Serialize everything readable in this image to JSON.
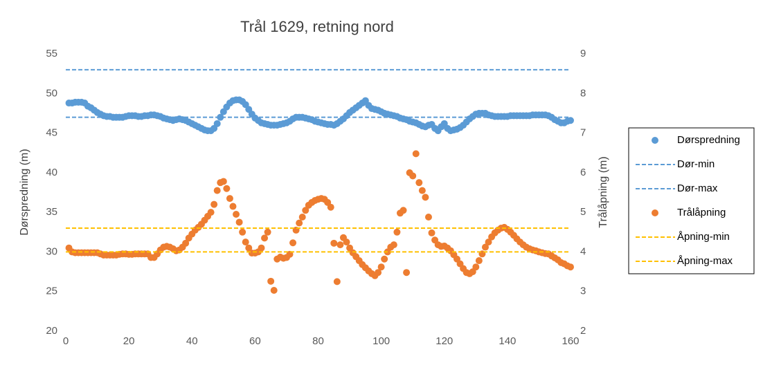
{
  "chart_data": {
    "type": "scatter",
    "title": "Trål 1629, retning nord",
    "y_label": "Dørspredning (m)",
    "y2_label": "Trålåpning (m)",
    "xlim": [
      0,
      160
    ],
    "xticks": [
      0,
      20,
      40,
      60,
      80,
      100,
      120,
      140,
      160
    ],
    "ylim": [
      20,
      55
    ],
    "yticks": [
      20,
      25,
      30,
      35,
      40,
      45,
      50,
      55
    ],
    "y2lim": [
      2,
      9
    ],
    "y2ticks": [
      2,
      3,
      4,
      5,
      6,
      7,
      8,
      9
    ],
    "legend": "right",
    "x": [
      1,
      2,
      3,
      4,
      5,
      6,
      7,
      8,
      9,
      10,
      11,
      12,
      13,
      14,
      15,
      16,
      17,
      18,
      19,
      20,
      21,
      22,
      23,
      24,
      25,
      26,
      27,
      28,
      29,
      30,
      31,
      32,
      33,
      34,
      35,
      36,
      37,
      38,
      39,
      40,
      41,
      42,
      43,
      44,
      45,
      46,
      47,
      48,
      49,
      50,
      51,
      52,
      53,
      54,
      55,
      56,
      57,
      58,
      59,
      60,
      61,
      62,
      63,
      64,
      65,
      66,
      67,
      68,
      69,
      70,
      71,
      72,
      73,
      74,
      75,
      76,
      77,
      78,
      79,
      80,
      81,
      82,
      83,
      84,
      85,
      86,
      87,
      88,
      89,
      90,
      91,
      92,
      93,
      94,
      95,
      96,
      97,
      98,
      99,
      100,
      101,
      102,
      103,
      104,
      105,
      106,
      107,
      108,
      109,
      110,
      111,
      112,
      113,
      114,
      115,
      116,
      117,
      118,
      119,
      120,
      121,
      122,
      123,
      124,
      125,
      126,
      127,
      128,
      129,
      130,
      131,
      132,
      133,
      134,
      135,
      136,
      137,
      138,
      139,
      140,
      141,
      142,
      143,
      144,
      145,
      146,
      147,
      148,
      149,
      150,
      151,
      152,
      153,
      154,
      155,
      156,
      157,
      158,
      159,
      160
    ],
    "series": [
      {
        "name": "Dørspredning",
        "color": "#5b9bd5",
        "style": "dots",
        "values": [
          48.8,
          48.8,
          48.9,
          48.9,
          48.9,
          48.8,
          48.4,
          48.2,
          47.9,
          47.6,
          47.4,
          47.2,
          47.1,
          47.1,
          47.0,
          47.0,
          47.0,
          47.0,
          47.1,
          47.2,
          47.2,
          47.2,
          47.1,
          47.1,
          47.2,
          47.2,
          47.3,
          47.3,
          47.2,
          47.1,
          46.9,
          46.8,
          46.7,
          46.6,
          46.7,
          46.8,
          46.7,
          46.6,
          46.4,
          46.2,
          46.0,
          45.8,
          45.6,
          45.4,
          45.3,
          45.3,
          45.6,
          46.2,
          47.0,
          47.7,
          48.3,
          48.8,
          49.1,
          49.2,
          49.2,
          49.0,
          48.6,
          48.0,
          47.4,
          46.9,
          46.6,
          46.3,
          46.2,
          46.1,
          46.0,
          46.0,
          46.0,
          46.1,
          46.2,
          46.3,
          46.5,
          46.8,
          47.0,
          47.0,
          47.0,
          46.9,
          46.8,
          46.7,
          46.5,
          46.4,
          46.3,
          46.2,
          46.1,
          46.1,
          46.0,
          46.2,
          46.5,
          46.8,
          47.2,
          47.6,
          47.9,
          48.2,
          48.5,
          48.8,
          49.1,
          48.5,
          48.1,
          48.0,
          47.9,
          47.7,
          47.5,
          47.4,
          47.3,
          47.2,
          47.1,
          46.9,
          46.8,
          46.7,
          46.5,
          46.4,
          46.3,
          46.1,
          45.9,
          45.8,
          46.0,
          46.1,
          45.6,
          45.3,
          45.8,
          46.2,
          45.6,
          45.3,
          45.4,
          45.5,
          45.7,
          46.0,
          46.4,
          46.8,
          47.1,
          47.4,
          47.5,
          47.5,
          47.5,
          47.3,
          47.2,
          47.1,
          47.1,
          47.1,
          47.1,
          47.1,
          47.2,
          47.2,
          47.2,
          47.2,
          47.2,
          47.2,
          47.2,
          47.3,
          47.3,
          47.3,
          47.3,
          47.3,
          47.2,
          47.0,
          46.7,
          46.5,
          46.3,
          46.3,
          46.5,
          46.6
        ]
      },
      {
        "name": "Dør-min",
        "color": "#5b9bd5",
        "style": "dashed",
        "value": 47
      },
      {
        "name": "Dør-max",
        "color": "#5b9bd5",
        "style": "dashed",
        "value": 53
      },
      {
        "name": "Trålåpning",
        "color": "#ed7d31",
        "style": "dots",
        "axis": "y2",
        "values": [
          4.1,
          4.0,
          3.98,
          3.98,
          3.98,
          3.98,
          3.98,
          3.98,
          3.98,
          3.98,
          3.95,
          3.92,
          3.92,
          3.92,
          3.92,
          3.92,
          3.94,
          3.95,
          3.95,
          3.94,
          3.94,
          3.95,
          3.95,
          3.95,
          3.95,
          3.95,
          3.86,
          3.86,
          3.95,
          4.05,
          4.12,
          4.14,
          4.12,
          4.08,
          4.03,
          4.05,
          4.12,
          4.22,
          4.35,
          4.45,
          4.55,
          4.62,
          4.7,
          4.8,
          4.9,
          5.0,
          5.2,
          5.55,
          5.75,
          5.78,
          5.6,
          5.35,
          5.15,
          4.95,
          4.75,
          4.5,
          4.25,
          4.1,
          3.97,
          3.97,
          4.0,
          4.1,
          4.35,
          4.5,
          3.26,
          3.03,
          3.82,
          3.87,
          3.84,
          3.86,
          3.94,
          4.23,
          4.55,
          4.73,
          4.88,
          5.05,
          5.18,
          5.25,
          5.3,
          5.33,
          5.35,
          5.33,
          5.25,
          5.13,
          4.22,
          3.25,
          4.18,
          4.36,
          4.25,
          4.1,
          3.98,
          3.88,
          3.78,
          3.68,
          3.6,
          3.52,
          3.45,
          3.4,
          3.48,
          3.62,
          3.82,
          4.0,
          4.12,
          4.18,
          4.5,
          4.98,
          5.05,
          3.48,
          6.0,
          5.92,
          6.48,
          5.75,
          5.55,
          5.38,
          4.88,
          4.48,
          4.3,
          4.18,
          4.14,
          4.15,
          4.1,
          4.03,
          3.93,
          3.82,
          3.7,
          3.58,
          3.48,
          3.45,
          3.5,
          3.62,
          3.78,
          3.95,
          4.12,
          4.25,
          4.38,
          4.48,
          4.55,
          4.6,
          4.62,
          4.57,
          4.5,
          4.42,
          4.33,
          4.25,
          4.18,
          4.12,
          4.08,
          4.05,
          4.03,
          4.0,
          3.98,
          3.96,
          3.95,
          3.9,
          3.85,
          3.8,
          3.73,
          3.7,
          3.65,
          3.62
        ]
      },
      {
        "name": "Åpning-min",
        "color": "#ffc000",
        "style": "dashed",
        "axis": "y2",
        "value": 4.0
      },
      {
        "name": "Åpning-max",
        "color": "#ffc000",
        "style": "dashed",
        "axis": "y2",
        "value": 4.6
      }
    ]
  }
}
